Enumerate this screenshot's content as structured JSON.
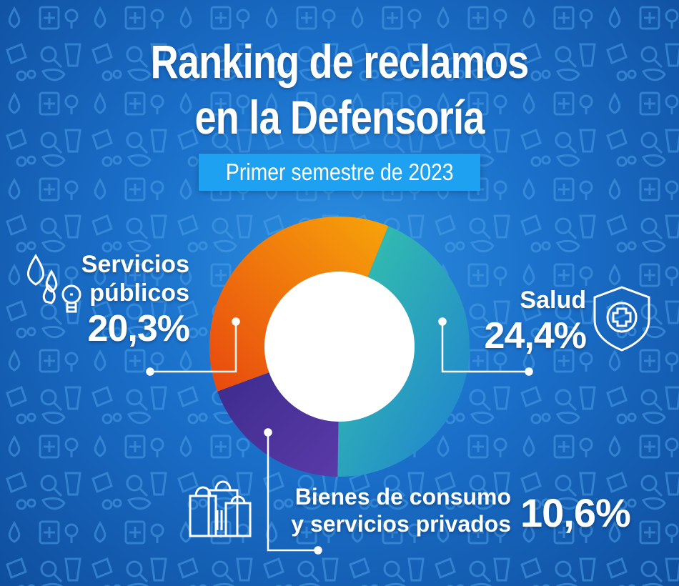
{
  "title_line1": "Ranking de reclamos",
  "title_line2": "en la Defensoría",
  "subtitle": "Primer semestre de 2023",
  "colors": {
    "orange": "#f28c0c",
    "orange_dark": "#ec5a12",
    "teal": "#2bbfb0",
    "teal_blue": "#2192d8",
    "purple": "#5633a0",
    "purple_dark": "#34257f",
    "accent_bar": "#1ea1f0"
  },
  "chart_data": {
    "type": "donut",
    "title": "Ranking de reclamos en la Defensoría",
    "subtitle": "Primer semestre de 2023",
    "slices": [
      {
        "label": "Salud",
        "value": 24.4,
        "value_label": "24,4%",
        "color": "#2bbfb0",
        "icon": "shield-cross-icon"
      },
      {
        "label": "Bienes de consumo y servicios privados",
        "label_lines": [
          "Bienes de consumo",
          "y servicios privados"
        ],
        "value": 10.6,
        "value_label": "10,6%",
        "color": "#5633a0",
        "icon": "shopping-bags-icon"
      },
      {
        "label": "Servicios públicos",
        "label_lines": [
          "Servicios",
          "públicos"
        ],
        "value": 20.3,
        "value_label": "20,3%",
        "color": "#f28c0c",
        "icon": "utilities-icon"
      }
    ]
  }
}
